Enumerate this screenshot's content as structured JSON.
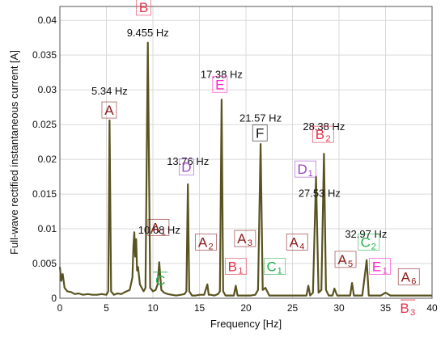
{
  "chart_data": {
    "type": "line",
    "xlabel": "Frequency [Hz]",
    "ylabel": "Full-wave rectified instantaneous current [A]",
    "xlim": [
      0,
      40
    ],
    "ylim": [
      0,
      0.042
    ],
    "xticks": [
      "0",
      "5",
      "10",
      "15",
      "20",
      "25",
      "30",
      "35",
      "40"
    ],
    "yticks": [
      "0",
      "0.005",
      "0.01",
      "0.015",
      "0.02",
      "0.025",
      "0.03",
      "0.035",
      "0.04"
    ],
    "grid": true,
    "line_color": "#595320",
    "series": [
      {
        "x": [
          0.0,
          0.15,
          0.3,
          0.5,
          0.8,
          1.2,
          1.6,
          2.0,
          2.5,
          3.0,
          3.5,
          4.0,
          4.5,
          5.0,
          5.2,
          5.34,
          5.5,
          5.8,
          6.2,
          6.6,
          7.0,
          7.5,
          7.8,
          7.9,
          8.0,
          8.1,
          8.2,
          8.3,
          8.4,
          8.6,
          8.8,
          9.0,
          9.2,
          9.455,
          9.7,
          10.0,
          10.3,
          10.5,
          10.68,
          10.9,
          11.2,
          11.6,
          12.0,
          12.5,
          13.0,
          13.4,
          13.6,
          13.76,
          13.9,
          14.2,
          14.6,
          15.0,
          15.5,
          15.85,
          16.0,
          16.2,
          16.6,
          17.0,
          17.2,
          17.38,
          17.55,
          17.8,
          18.2,
          18.7,
          18.9,
          19.1,
          19.5,
          20.0,
          20.5,
          21.0,
          21.3,
          21.57,
          21.8,
          22.1,
          22.5,
          23.0,
          23.5,
          24.0,
          24.5,
          25.0,
          25.5,
          26.0,
          26.5,
          26.7,
          26.9,
          27.2,
          27.53,
          27.8,
          28.1,
          28.38,
          28.6,
          28.9,
          29.3,
          29.5,
          29.8,
          30.3,
          30.8,
          31.2,
          31.4,
          31.6,
          32.0,
          32.5,
          32.97,
          33.2,
          33.6,
          34.0,
          34.5,
          35.0,
          35.5,
          36.0,
          36.6,
          37.0,
          37.6,
          38.0,
          38.6,
          39.0,
          39.5,
          40.0
        ],
        "y": [
          0.0045,
          0.0025,
          0.0035,
          0.0015,
          0.001,
          0.0009,
          0.0006,
          0.0007,
          0.0005,
          0.0006,
          0.0005,
          0.0005,
          0.0006,
          0.0005,
          0.001,
          0.0256,
          0.001,
          0.0005,
          0.0007,
          0.0006,
          0.0009,
          0.0012,
          0.003,
          0.0075,
          0.0095,
          0.006,
          0.0085,
          0.004,
          0.0045,
          0.002,
          0.0015,
          0.001,
          0.0015,
          0.0368,
          0.0015,
          0.001,
          0.0012,
          0.002,
          0.0052,
          0.0012,
          0.0008,
          0.0006,
          0.0005,
          0.0004,
          0.0005,
          0.0006,
          0.001,
          0.0164,
          0.001,
          0.0004,
          0.0004,
          0.0005,
          0.0005,
          0.002,
          0.0005,
          0.0005,
          0.0004,
          0.0006,
          0.001,
          0.0286,
          0.001,
          0.0004,
          0.0004,
          0.0004,
          0.0018,
          0.0004,
          0.0004,
          0.0004,
          0.0004,
          0.0005,
          0.0012,
          0.0222,
          0.0012,
          0.0015,
          0.0004,
          0.0004,
          0.0004,
          0.0004,
          0.0004,
          0.0004,
          0.0004,
          0.0004,
          0.0004,
          0.0018,
          0.0004,
          0.0008,
          0.0175,
          0.0008,
          0.0012,
          0.0208,
          0.0012,
          0.0004,
          0.0004,
          0.0014,
          0.0004,
          0.0004,
          0.0004,
          0.0004,
          0.0022,
          0.0004,
          0.0004,
          0.0004,
          0.0055,
          0.0004,
          0.0004,
          0.0004,
          0.0004,
          0.0008,
          0.0004,
          0.0004,
          0.0004,
          0.0004,
          0.0004,
          0.0004,
          0.0004,
          0.0004,
          0.0004,
          0.0004
        ]
      }
    ],
    "annotations": [
      {
        "text": "5.34 Hz",
        "x": 5.34,
        "y": 0.0293
      },
      {
        "text": "9.455 Hz",
        "x": 9.455,
        "y": 0.0377
      },
      {
        "text": "10.68 Hz",
        "x": 10.68,
        "y": 0.0093
      },
      {
        "text": "13.76 Hz",
        "x": 13.76,
        "y": 0.0192
      },
      {
        "text": "17.38 Hz",
        "x": 17.38,
        "y": 0.0317
      },
      {
        "text": "21.57 Hz",
        "x": 21.57,
        "y": 0.0254
      },
      {
        "text": "28.38 Hz",
        "x": 28.38,
        "y": 0.0242
      },
      {
        "text": "27.53 Hz",
        "x": 27.9,
        "y": 0.0146
      },
      {
        "text": "32.97 Hz",
        "x": 32.9,
        "y": 0.0087
      }
    ],
    "component_labels": [
      {
        "letter": "A",
        "sub": "",
        "color": "#8b1a1a",
        "boxed": true,
        "x": 5.3,
        "y": 0.0264
      },
      {
        "letter": "B",
        "sub": "",
        "color": "#e8304a",
        "boxed": true,
        "x": 9.0,
        "y": 0.0412
      },
      {
        "letter": "A",
        "sub": "1",
        "color": "#8b1a1a",
        "boxed": true,
        "x": 10.6,
        "y": 0.0095
      },
      {
        "letter": "C",
        "sub": "",
        "color": "#22b14c",
        "boxed": false,
        "x": 10.8,
        "y": 0.0019
      },
      {
        "letter": "D",
        "sub": "",
        "color": "#9b45c8",
        "boxed": true,
        "x": 13.6,
        "y": 0.0182
      },
      {
        "letter": "A",
        "sub": "2",
        "color": "#8b1a1a",
        "boxed": true,
        "x": 15.7,
        "y": 0.0074
      },
      {
        "letter": "E",
        "sub": "",
        "color": "#ff22cc",
        "boxed": true,
        "x": 17.2,
        "y": 0.0301
      },
      {
        "letter": "A",
        "sub": "3",
        "color": "#8b1a1a",
        "boxed": true,
        "x": 19.9,
        "y": 0.0079
      },
      {
        "letter": "B",
        "sub": "1",
        "color": "#e8304a",
        "boxed": true,
        "x": 18.9,
        "y": 0.0039
      },
      {
        "letter": "F",
        "sub": "",
        "color": "#111111",
        "boxed": true,
        "x": 21.5,
        "y": 0.0231
      },
      {
        "letter": "C",
        "sub": "1",
        "color": "#22b14c",
        "boxed": true,
        "x": 23.1,
        "y": 0.0039
      },
      {
        "letter": "A",
        "sub": "4",
        "color": "#8b1a1a",
        "boxed": true,
        "x": 25.5,
        "y": 0.0074
      },
      {
        "letter": "D",
        "sub": "1",
        "color": "#9b45c8",
        "boxed": true,
        "x": 26.4,
        "y": 0.0179
      },
      {
        "letter": "B",
        "sub": "2",
        "color": "#e8304a",
        "boxed": true,
        "x": 28.3,
        "y": 0.0229
      },
      {
        "letter": "A",
        "sub": "5",
        "color": "#8b1a1a",
        "boxed": true,
        "x": 30.7,
        "y": 0.0049
      },
      {
        "letter": "C",
        "sub": "2",
        "color": "#22b14c",
        "boxed": true,
        "x": 33.2,
        "y": 0.0074
      },
      {
        "letter": "E",
        "sub": "1",
        "color": "#ff22cc",
        "boxed": true,
        "x": 34.4,
        "y": 0.0039
      },
      {
        "letter": "A",
        "sub": "6",
        "color": "#8b1a1a",
        "boxed": true,
        "x": 37.5,
        "y": 0.0024
      },
      {
        "letter": "B",
        "sub": "3",
        "color": "#e8304a",
        "boxed": false,
        "x": 37.4,
        "y": -0.0021
      }
    ]
  }
}
